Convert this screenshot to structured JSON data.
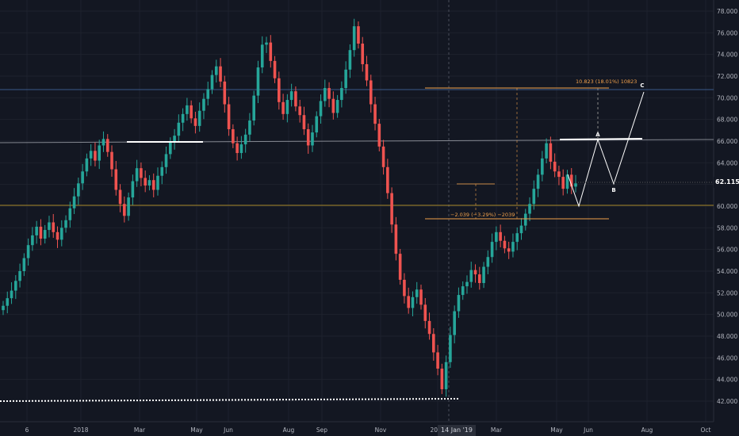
{
  "chart_data": {
    "type": "candlestick",
    "symbol_last_price": "62.115",
    "crosshair_date_label": "14 Jan '19",
    "y_axis": {
      "ylim": [
        41.5,
        79
      ],
      "ticks": [
        "42.000",
        "44.000",
        "46.000",
        "48.000",
        "50.000",
        "52.000",
        "54.000",
        "56.000",
        "58.000",
        "60.000",
        "62.000",
        "64.000",
        "66.000",
        "68.000",
        "70.000",
        "72.000",
        "74.000",
        "76.000",
        "78.000"
      ]
    },
    "x_axis": {
      "ticks": [
        "6",
        "2018",
        "Mar",
        "May",
        "Jun",
        "Aug",
        "Sep",
        "Nov",
        "2019",
        "Mar",
        "May",
        "Jun",
        "Aug",
        "Oct"
      ]
    },
    "closes": [
      50.8,
      51.5,
      52.2,
      53.1,
      54.0,
      55.2,
      56.4,
      57.3,
      58.1,
      57.0,
      57.8,
      58.5,
      57.6,
      56.9,
      58.0,
      58.7,
      59.8,
      60.9,
      62.1,
      63.2,
      64.4,
      65.1,
      64.2,
      65.6,
      66.2,
      65.0,
      63.4,
      61.5,
      60.2,
      59.1,
      60.8,
      62.3,
      63.5,
      62.6,
      61.9,
      62.4,
      61.5,
      62.8,
      63.6,
      64.8,
      65.9,
      66.5,
      67.7,
      68.5,
      69.3,
      68.1,
      67.4,
      68.8,
      69.9,
      70.8,
      72.1,
      72.9,
      71.5,
      69.4,
      67.1,
      65.8,
      64.9,
      65.7,
      66.6,
      67.9,
      70.2,
      72.8,
      74.9,
      75.1,
      73.4,
      71.8,
      69.6,
      68.5,
      69.8,
      70.6,
      69.2,
      68.4,
      67.1,
      65.6,
      66.8,
      68.3,
      69.7,
      70.9,
      69.9,
      68.6,
      69.8,
      70.9,
      72.6,
      74.4,
      76.6,
      75.0,
      73.1,
      71.6,
      69.4,
      67.6,
      65.5,
      63.6,
      61.2,
      58.3,
      55.6,
      53.2,
      51.7,
      50.6,
      51.6,
      52.3,
      50.9,
      49.4,
      48.2,
      46.5,
      45.0,
      43.1,
      45.6,
      48.1,
      50.3,
      51.8,
      52.6,
      53.0,
      54.1,
      53.7,
      52.9,
      54.4,
      55.3,
      56.7,
      57.6,
      56.8,
      56.1,
      55.8,
      56.7,
      57.5,
      58.2,
      59.3,
      60.2,
      61.6,
      62.9,
      64.4,
      65.8,
      64.1,
      63.2,
      62.7,
      61.6,
      62.9,
      61.8,
      62.1
    ],
    "annotations": {
      "upper_measure_label": "10.823 (18.01%) 10823",
      "lower_measure_label": "−2.039 (−3.29%) −2039",
      "wave_labels": [
        "A",
        "B",
        "C"
      ]
    }
  },
  "colors": {
    "background": "#131722",
    "grid": "#1e222d",
    "up": "#26a69a",
    "down": "#ef5350",
    "axis_text": "#b2b5be",
    "measure": "#f0a04b",
    "resistance": "#b2b5be",
    "support": "#c9a227",
    "projection": "#ffffff"
  }
}
